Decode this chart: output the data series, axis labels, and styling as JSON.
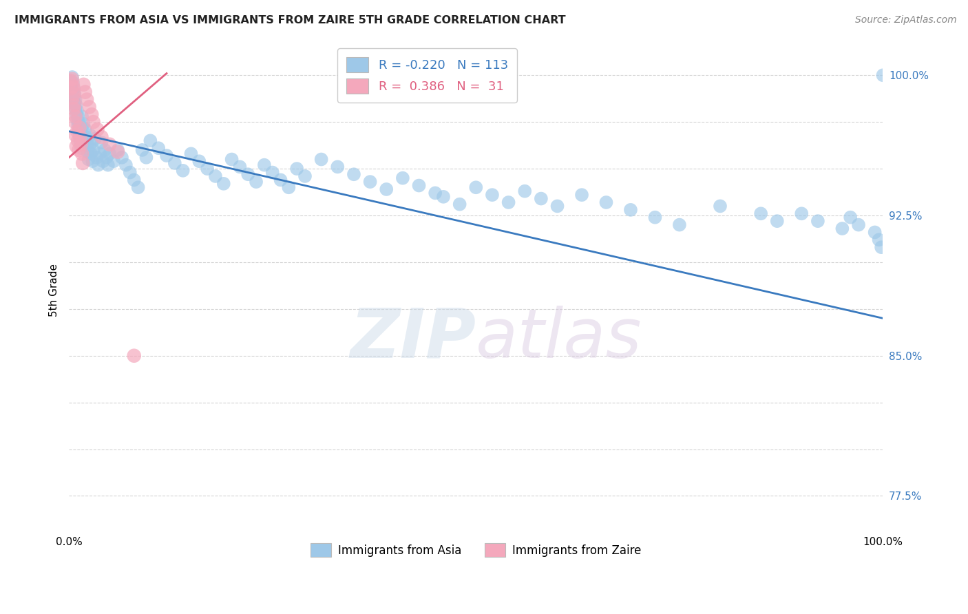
{
  "title": "IMMIGRANTS FROM ASIA VS IMMIGRANTS FROM ZAIRE 5TH GRADE CORRELATION CHART",
  "source_text": "Source: ZipAtlas.com",
  "ylabel": "5th Grade",
  "watermark_zip": "ZIP",
  "watermark_atlas": "atlas",
  "legend_entries": [
    {
      "label": "Immigrants from Asia",
      "color": "#a8c8e8",
      "R": -0.22,
      "N": 113
    },
    {
      "label": "Immigrants from Zaire",
      "color": "#f4b8c8",
      "R": 0.386,
      "N": 31
    }
  ],
  "xlim": [
    0.0,
    1.0
  ],
  "ylim": [
    0.755,
    1.015
  ],
  "ytick_positions": [
    0.775,
    0.8,
    0.825,
    0.85,
    0.875,
    0.9,
    0.925,
    0.95,
    0.975,
    1.0
  ],
  "ytick_labels": [
    "77.5%",
    "",
    "",
    "85.0%",
    "",
    "",
    "92.5%",
    "",
    "",
    "100.0%"
  ],
  "xtick_positions": [
    0.0,
    0.1,
    0.2,
    0.3,
    0.4,
    0.5,
    0.6,
    0.7,
    0.8,
    0.9,
    1.0
  ],
  "xtick_labels": [
    "0.0%",
    "",
    "",
    "",
    "",
    "",
    "",
    "",
    "",
    "",
    "100.0%"
  ],
  "blue_line_x": [
    0.0,
    1.0
  ],
  "blue_line_y": [
    0.97,
    0.87
  ],
  "pink_line_x": [
    0.0,
    0.12
  ],
  "pink_line_y": [
    0.956,
    1.001
  ],
  "blue_color": "#9ec8e8",
  "pink_color": "#f4a8bc",
  "blue_line_color": "#3a7abf",
  "pink_line_color": "#e06080",
  "grid_color": "#c8c8c8",
  "background_color": "#ffffff",
  "blue_scatter_x": [
    0.002,
    0.003,
    0.004,
    0.005,
    0.005,
    0.006,
    0.006,
    0.007,
    0.007,
    0.008,
    0.008,
    0.009,
    0.009,
    0.01,
    0.01,
    0.011,
    0.011,
    0.012,
    0.012,
    0.013,
    0.013,
    0.014,
    0.014,
    0.015,
    0.015,
    0.016,
    0.016,
    0.017,
    0.018,
    0.019,
    0.02,
    0.021,
    0.022,
    0.023,
    0.024,
    0.025,
    0.026,
    0.027,
    0.028,
    0.029,
    0.03,
    0.032,
    0.034,
    0.036,
    0.038,
    0.04,
    0.042,
    0.044,
    0.046,
    0.048,
    0.05,
    0.055,
    0.06,
    0.065,
    0.07,
    0.075,
    0.08,
    0.085,
    0.09,
    0.095,
    0.1,
    0.11,
    0.12,
    0.13,
    0.14,
    0.15,
    0.16,
    0.17,
    0.18,
    0.19,
    0.2,
    0.21,
    0.22,
    0.23,
    0.24,
    0.25,
    0.26,
    0.27,
    0.28,
    0.29,
    0.31,
    0.33,
    0.35,
    0.37,
    0.39,
    0.41,
    0.43,
    0.45,
    0.46,
    0.48,
    0.5,
    0.52,
    0.54,
    0.56,
    0.58,
    0.6,
    0.63,
    0.66,
    0.69,
    0.72,
    0.75,
    0.8,
    0.85,
    0.87,
    0.9,
    0.92,
    0.95,
    0.96,
    0.97,
    0.99,
    0.995,
    0.998,
    1.0
  ],
  "blue_scatter_y": [
    0.997,
    0.994,
    0.999,
    0.991,
    0.996,
    0.988,
    0.993,
    0.985,
    0.99,
    0.982,
    0.987,
    0.979,
    0.984,
    0.976,
    0.981,
    0.973,
    0.978,
    0.97,
    0.975,
    0.967,
    0.972,
    0.964,
    0.969,
    0.961,
    0.966,
    0.972,
    0.978,
    0.968,
    0.974,
    0.965,
    0.971,
    0.967,
    0.963,
    0.959,
    0.955,
    0.962,
    0.968,
    0.958,
    0.964,
    0.954,
    0.96,
    0.966,
    0.956,
    0.952,
    0.958,
    0.964,
    0.954,
    0.96,
    0.956,
    0.952,
    0.958,
    0.954,
    0.96,
    0.956,
    0.952,
    0.948,
    0.944,
    0.94,
    0.96,
    0.956,
    0.965,
    0.961,
    0.957,
    0.953,
    0.949,
    0.958,
    0.954,
    0.95,
    0.946,
    0.942,
    0.955,
    0.951,
    0.947,
    0.943,
    0.952,
    0.948,
    0.944,
    0.94,
    0.95,
    0.946,
    0.955,
    0.951,
    0.947,
    0.943,
    0.939,
    0.945,
    0.941,
    0.937,
    0.935,
    0.931,
    0.94,
    0.936,
    0.932,
    0.938,
    0.934,
    0.93,
    0.936,
    0.932,
    0.928,
    0.924,
    0.92,
    0.93,
    0.926,
    0.922,
    0.926,
    0.922,
    0.918,
    0.924,
    0.92,
    0.916,
    0.912,
    0.908,
    1.0
  ],
  "pink_scatter_x": [
    0.002,
    0.003,
    0.004,
    0.005,
    0.005,
    0.006,
    0.006,
    0.007,
    0.007,
    0.008,
    0.008,
    0.009,
    0.01,
    0.011,
    0.012,
    0.013,
    0.014,
    0.015,
    0.016,
    0.017,
    0.018,
    0.02,
    0.022,
    0.025,
    0.028,
    0.03,
    0.035,
    0.04,
    0.05,
    0.06,
    0.08
  ],
  "pink_scatter_y": [
    0.997,
    0.993,
    0.998,
    0.988,
    0.994,
    0.982,
    0.99,
    0.975,
    0.984,
    0.968,
    0.978,
    0.962,
    0.97,
    0.965,
    0.96,
    0.972,
    0.967,
    0.963,
    0.958,
    0.953,
    0.995,
    0.991,
    0.987,
    0.983,
    0.979,
    0.975,
    0.971,
    0.967,
    0.963,
    0.959,
    0.85
  ]
}
